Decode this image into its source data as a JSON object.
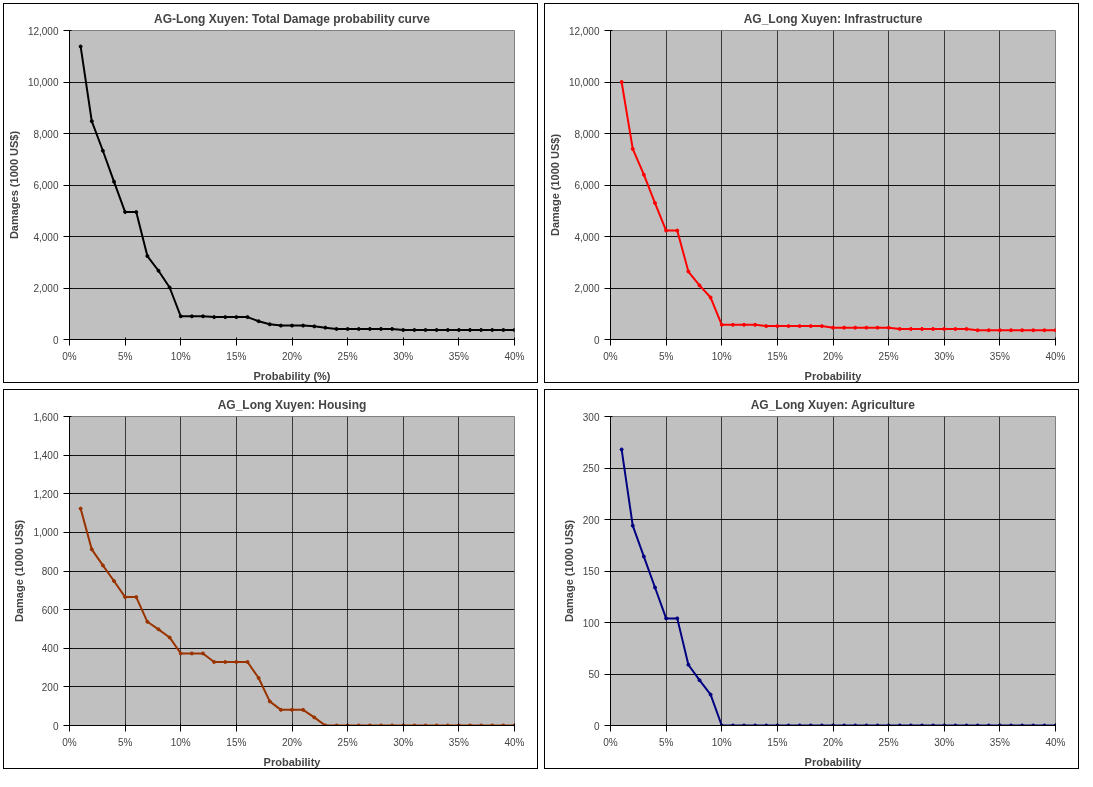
{
  "chart_data": [
    {
      "type": "line",
      "title": "AG-Long Xuyen: Total Damage probability curve",
      "xlabel": "Probability (%)",
      "ylabel": "Damages (1000 US$)",
      "grid": "y",
      "marker": "circle",
      "x": [
        0.01,
        0.02,
        0.03,
        0.04,
        0.05,
        0.06,
        0.07,
        0.08,
        0.09,
        0.1,
        0.11,
        0.12,
        0.13,
        0.14,
        0.15,
        0.16,
        0.17,
        0.18,
        0.19,
        0.2,
        0.21,
        0.22,
        0.23,
        0.24,
        0.25,
        0.26,
        0.27,
        0.28,
        0.29,
        0.3,
        0.31,
        0.32,
        0.33,
        0.34,
        0.35,
        0.36,
        0.37,
        0.38,
        0.39,
        0.4
      ],
      "series": [
        {
          "color": "#000000",
          "values": [
            11380,
            8480,
            7330,
            6130,
            4950,
            4950,
            3240,
            2670,
            2020,
            900,
            900,
            900,
            870,
            870,
            870,
            870,
            710,
            590,
            540,
            540,
            540,
            510,
            460,
            410,
            410,
            410,
            410,
            410,
            410,
            370,
            370,
            370,
            370,
            370,
            370,
            370,
            370,
            370,
            370,
            370
          ]
        }
      ],
      "xlim": [
        0,
        0.4
      ],
      "ylim": [
        0,
        12000
      ],
      "xticks": [
        {
          "value": 0,
          "label": "0%"
        },
        {
          "value": 0.05,
          "label": "5%"
        },
        {
          "value": 0.1,
          "label": "10%"
        },
        {
          "value": 0.15,
          "label": "15%"
        },
        {
          "value": 0.2,
          "label": "20%"
        },
        {
          "value": 0.25,
          "label": "25%"
        },
        {
          "value": 0.3,
          "label": "30%"
        },
        {
          "value": 0.35,
          "label": "35%"
        },
        {
          "value": 0.4,
          "label": "40%"
        }
      ],
      "yticks": [
        0,
        {
          "value": 2000,
          "label": "2,000"
        },
        {
          "value": 4000,
          "label": "4,000"
        },
        {
          "value": 6000,
          "label": "6,000"
        },
        {
          "value": 8000,
          "label": "8,000"
        },
        {
          "value": 10000,
          "label": "10,000"
        },
        {
          "value": 12000,
          "label": "12,000"
        }
      ]
    },
    {
      "type": "line",
      "title": "AG_Long Xuyen: Infrastructure",
      "xlabel": "Probability",
      "ylabel": "Damage (1000 US$)",
      "grid": true,
      "marker": "circle",
      "x": [
        0.01,
        0.02,
        0.03,
        0.04,
        0.05,
        0.06,
        0.07,
        0.08,
        0.09,
        0.1,
        0.11,
        0.12,
        0.13,
        0.14,
        0.15,
        0.16,
        0.17,
        0.18,
        0.19,
        0.2,
        0.21,
        0.22,
        0.23,
        0.24,
        0.25,
        0.26,
        0.27,
        0.28,
        0.29,
        0.3,
        0.31,
        0.32,
        0.33,
        0.34,
        0.35,
        0.36,
        0.37,
        0.38,
        0.39,
        0.4
      ],
      "series": [
        {
          "color": "#ff0000",
          "values": [
            10000,
            7400,
            6400,
            5300,
            4230,
            4230,
            2640,
            2100,
            1630,
            570,
            570,
            570,
            570,
            520,
            520,
            520,
            520,
            520,
            520,
            460,
            460,
            460,
            460,
            460,
            460,
            410,
            410,
            410,
            410,
            410,
            410,
            410,
            360,
            360,
            360,
            360,
            360,
            360,
            360,
            360
          ]
        }
      ],
      "xlim": [
        0,
        0.4
      ],
      "ylim": [
        0,
        12000
      ],
      "xticks": [
        {
          "value": 0,
          "label": "0%"
        },
        {
          "value": 0.05,
          "label": "5%"
        },
        {
          "value": 0.1,
          "label": "10%"
        },
        {
          "value": 0.15,
          "label": "15%"
        },
        {
          "value": 0.2,
          "label": "20%"
        },
        {
          "value": 0.25,
          "label": "25%"
        },
        {
          "value": 0.3,
          "label": "30%"
        },
        {
          "value": 0.35,
          "label": "35%"
        },
        {
          "value": 0.4,
          "label": "40%"
        }
      ],
      "yticks": [
        0,
        {
          "value": 2000,
          "label": "2,000"
        },
        {
          "value": 4000,
          "label": "4,000"
        },
        {
          "value": 6000,
          "label": "6,000"
        },
        {
          "value": 8000,
          "label": "8,000"
        },
        {
          "value": 10000,
          "label": "10,000"
        },
        {
          "value": 12000,
          "label": "12,000"
        }
      ]
    },
    {
      "type": "line",
      "title": "AG_Long Xuyen: Housing",
      "xlabel": "Probability",
      "ylabel": "Damage (1000 US$)",
      "grid": true,
      "marker": "circle",
      "x": [
        0.01,
        0.02,
        0.03,
        0.04,
        0.05,
        0.06,
        0.07,
        0.08,
        0.09,
        0.1,
        0.11,
        0.12,
        0.13,
        0.14,
        0.15,
        0.16,
        0.17,
        0.18,
        0.19,
        0.2,
        0.21,
        0.22,
        0.23,
        0.24,
        0.25,
        0.26,
        0.27,
        0.28,
        0.29,
        0.3,
        0.31,
        0.32,
        0.33,
        0.34,
        0.35,
        0.36,
        0.37,
        0.38,
        0.39,
        0.4
      ],
      "series": [
        {
          "color": "#993300",
          "values": [
            1123,
            912,
            829,
            748,
            665,
            665,
            537,
            498,
            456,
            373,
            373,
            373,
            329,
            329,
            329,
            329,
            246,
            125,
            81,
            81,
            81,
            42,
            0,
            0,
            0,
            0,
            0,
            0,
            0,
            0,
            0,
            0,
            0,
            0,
            0,
            0,
            0,
            0,
            0,
            0
          ]
        }
      ],
      "xlim": [
        0,
        0.4
      ],
      "ylim": [
        0,
        1600
      ],
      "xticks": [
        {
          "value": 0,
          "label": "0%"
        },
        {
          "value": 0.05,
          "label": "5%"
        },
        {
          "value": 0.1,
          "label": "10%"
        },
        {
          "value": 0.15,
          "label": "15%"
        },
        {
          "value": 0.2,
          "label": "20%"
        },
        {
          "value": 0.25,
          "label": "25%"
        },
        {
          "value": 0.3,
          "label": "30%"
        },
        {
          "value": 0.35,
          "label": "35%"
        },
        {
          "value": 0.4,
          "label": "40%"
        }
      ],
      "yticks": [
        0,
        200,
        400,
        600,
        800,
        {
          "value": 1000,
          "label": "1,000"
        },
        {
          "value": 1200,
          "label": "1,200"
        },
        {
          "value": 1400,
          "label": "1,400"
        },
        {
          "value": 1600,
          "label": "1,600"
        }
      ]
    },
    {
      "type": "line",
      "title": "AG_Long Xuyen: Agriculture",
      "xlabel": "Probability",
      "ylabel": "Damage (1000 US$)",
      "grid": true,
      "marker": "circle",
      "x": [
        0.01,
        0.02,
        0.03,
        0.04,
        0.05,
        0.06,
        0.07,
        0.08,
        0.09,
        0.1,
        0.11,
        0.12,
        0.13,
        0.14,
        0.15,
        0.16,
        0.17,
        0.18,
        0.19,
        0.2,
        0.21,
        0.22,
        0.23,
        0.24,
        0.25,
        0.26,
        0.27,
        0.28,
        0.29,
        0.3,
        0.31,
        0.32,
        0.33,
        0.34,
        0.35,
        0.36,
        0.37,
        0.38,
        0.39,
        0.4
      ],
      "series": [
        {
          "color": "#000080",
          "values": [
            268,
            194,
            164,
            134,
            104,
            104,
            59,
            44,
            30,
            0,
            0,
            0,
            0,
            0,
            0,
            0,
            0,
            0,
            0,
            0,
            0,
            0,
            0,
            0,
            0,
            0,
            0,
            0,
            0,
            0,
            0,
            0,
            0,
            0,
            0,
            0,
            0,
            0,
            0,
            0
          ]
        }
      ],
      "xlim": [
        0,
        0.4
      ],
      "ylim": [
        0,
        300
      ],
      "xticks": [
        {
          "value": 0,
          "label": "0%"
        },
        {
          "value": 0.05,
          "label": "5%"
        },
        {
          "value": 0.1,
          "label": "10%"
        },
        {
          "value": 0.15,
          "label": "15%"
        },
        {
          "value": 0.2,
          "label": "20%"
        },
        {
          "value": 0.25,
          "label": "25%"
        },
        {
          "value": 0.3,
          "label": "30%"
        },
        {
          "value": 0.35,
          "label": "35%"
        },
        {
          "value": 0.4,
          "label": "40%"
        }
      ],
      "yticks": [
        0,
        50,
        100,
        150,
        200,
        250,
        300
      ]
    }
  ]
}
